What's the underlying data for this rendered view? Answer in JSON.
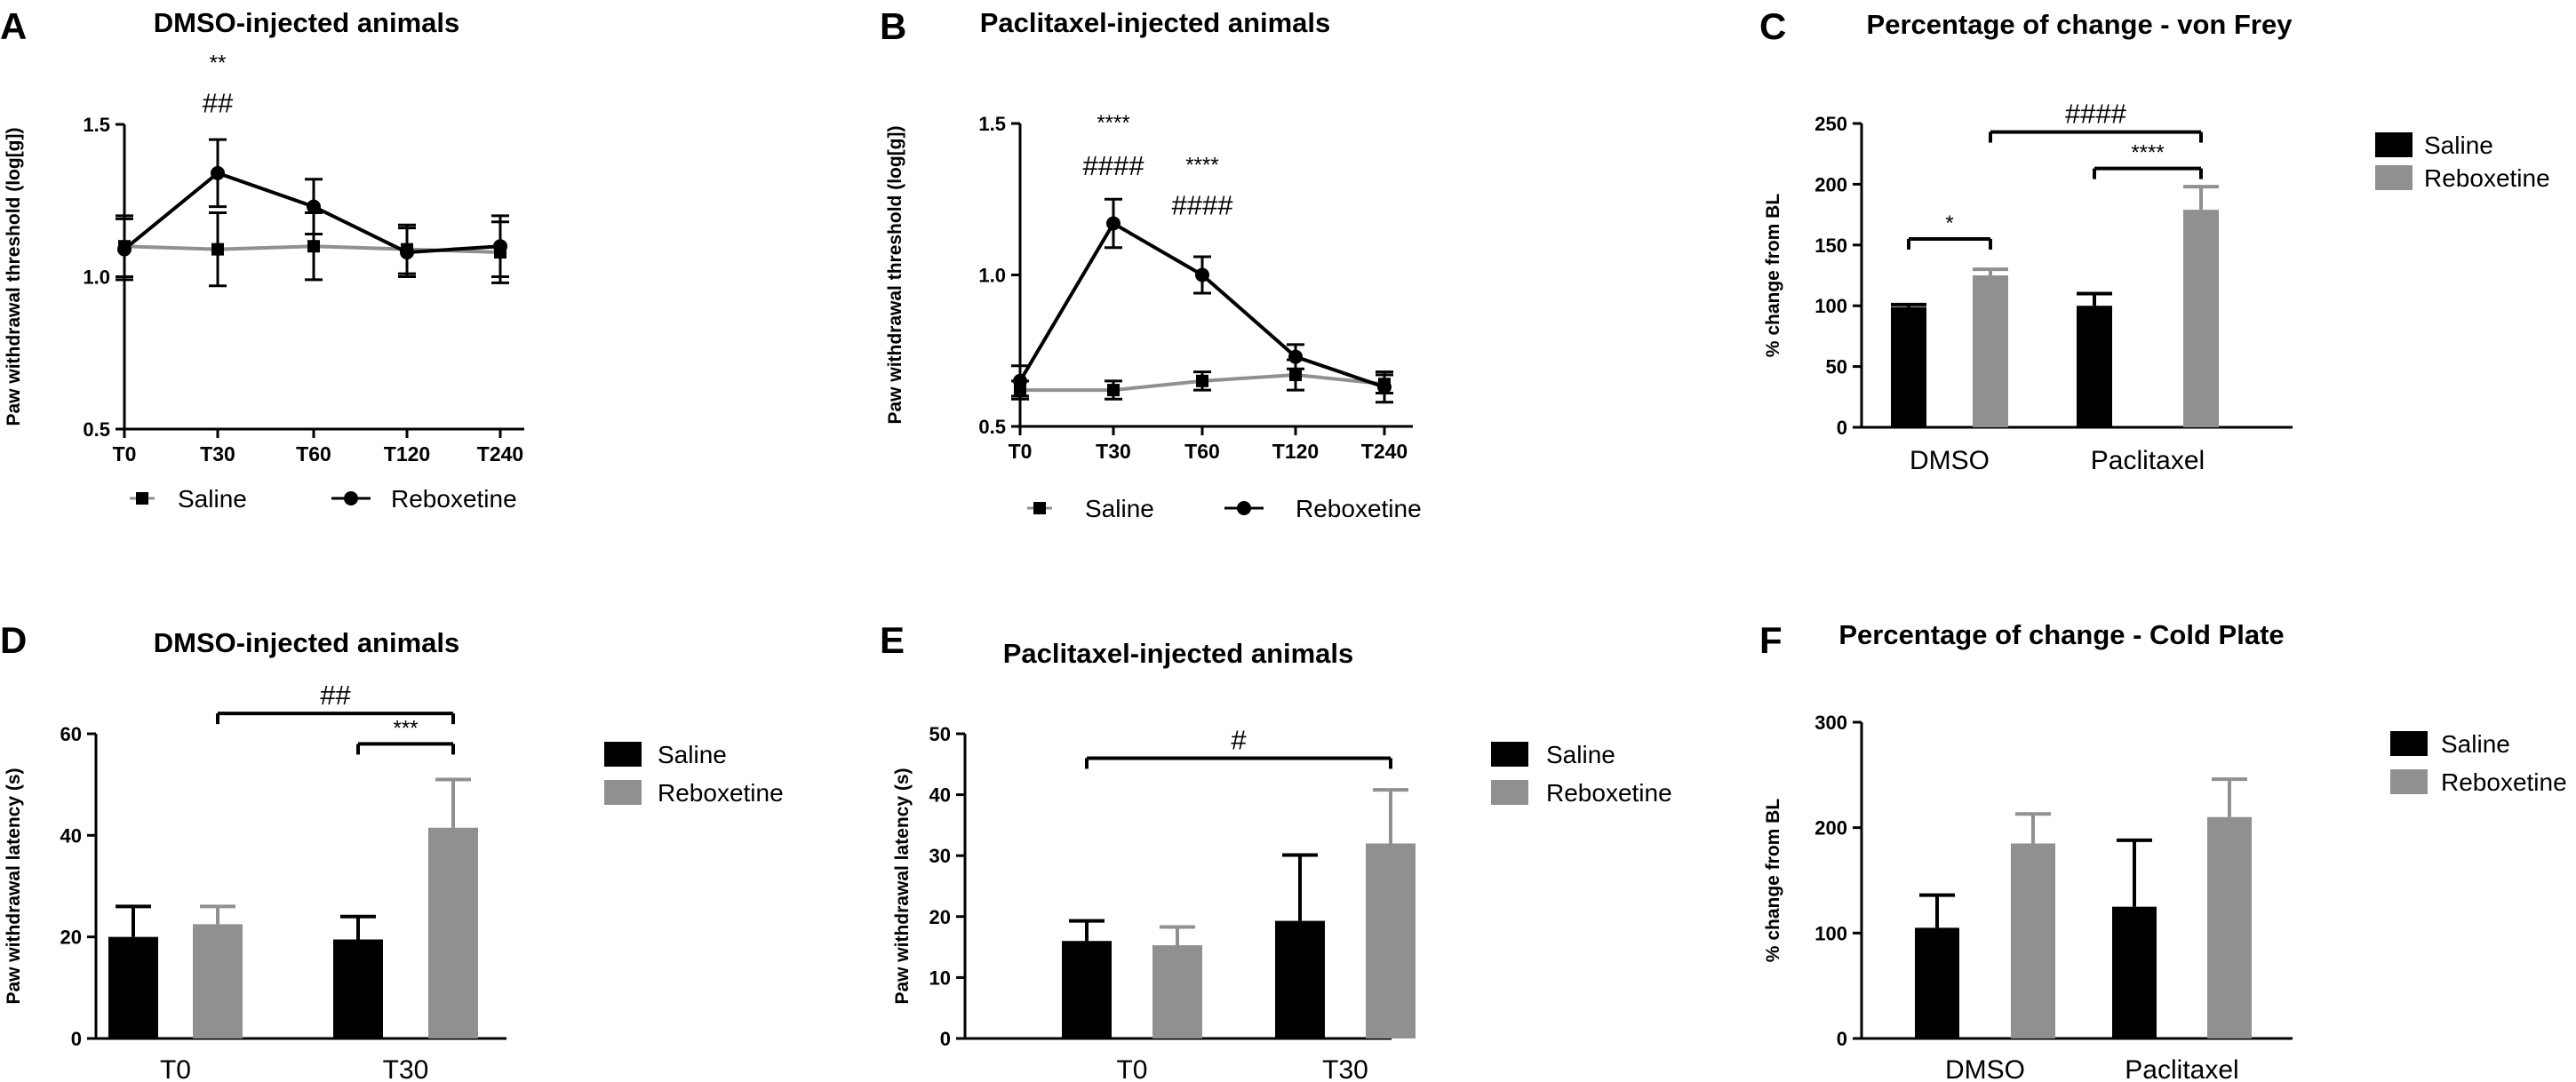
{
  "colors": {
    "saline": "#000000",
    "reboxetine": "#909090",
    "saline_line": "#909090",
    "reboxetine_line": "#000000"
  },
  "chart_data": [
    {
      "label": "A",
      "type": "line",
      "title": "DMSO-injected animals",
      "ylabel": "Paw withdrawal threshold (log[g])",
      "categories": [
        "T0",
        "T30",
        "T60",
        "T120",
        "T240"
      ],
      "ylim": [
        0.5,
        1.5
      ],
      "yticks": [
        "0.5",
        "1.0",
        "1.5"
      ],
      "series": [
        {
          "name": "Saline",
          "marker": "square",
          "values": [
            1.1,
            1.09,
            1.1,
            1.09,
            1.08
          ],
          "errors": [
            0.1,
            0.12,
            0.11,
            0.08,
            0.1
          ]
        },
        {
          "name": "Reboxetine",
          "marker": "circle",
          "values": [
            1.09,
            1.34,
            1.23,
            1.08,
            1.1
          ],
          "errors": [
            0.1,
            0.11,
            0.09,
            0.08,
            0.1
          ]
        }
      ],
      "legend": [
        "Saline",
        "Reboxetine"
      ],
      "annotations": [
        {
          "category": "T30",
          "y": 1.68,
          "text": "**"
        },
        {
          "category": "T30",
          "y": 1.54,
          "text": "##"
        }
      ]
    },
    {
      "label": "B",
      "type": "line",
      "title": "Paclitaxel-injected animals",
      "ylabel": "Paw withdrawal threshold (log[g])",
      "categories": [
        "T0",
        "T30",
        "T60",
        "T120",
        "T240"
      ],
      "ylim": [
        0.5,
        1.5
      ],
      "yticks": [
        "0.5",
        "1.0",
        "1.5"
      ],
      "series": [
        {
          "name": "Saline",
          "marker": "square",
          "values": [
            0.62,
            0.62,
            0.65,
            0.67,
            0.64
          ],
          "errors": [
            0.03,
            0.03,
            0.03,
            0.05,
            0.03
          ]
        },
        {
          "name": "Reboxetine",
          "marker": "circle",
          "values": [
            0.65,
            1.17,
            1.0,
            0.73,
            0.63
          ],
          "errors": [
            0.05,
            0.08,
            0.06,
            0.04,
            0.05
          ]
        }
      ],
      "legend": [
        "Saline",
        "Reboxetine"
      ],
      "annotations": [
        {
          "category": "T30",
          "y": 1.48,
          "text": "****"
        },
        {
          "category": "T30",
          "y": 1.33,
          "text": "####"
        },
        {
          "category": "T60",
          "y": 1.34,
          "text": "****"
        },
        {
          "category": "T60",
          "y": 1.2,
          "text": "####"
        }
      ]
    },
    {
      "label": "C",
      "type": "bar",
      "title": "Percentage of change - von Frey",
      "ylabel": "% change from BL",
      "categories": [
        "DMSO",
        "Paclitaxel"
      ],
      "ylim": [
        0,
        250
      ],
      "yticks": [
        "0",
        "50",
        "100",
        "150",
        "200",
        "250"
      ],
      "series": [
        {
          "name": "Saline",
          "values": [
            99,
            100
          ],
          "errors": [
            2,
            10
          ]
        },
        {
          "name": "Reboxetine",
          "values": [
            125,
            179
          ],
          "errors": [
            5,
            19
          ]
        }
      ],
      "legend": [
        "Saline",
        "Reboxetine"
      ],
      "annotations": [
        {
          "from": [
            0,
            0
          ],
          "to": [
            0,
            1
          ],
          "y": 155,
          "text": "*"
        },
        {
          "from": [
            1,
            0
          ],
          "to": [
            1,
            1
          ],
          "y": 213,
          "text": "****"
        },
        {
          "from": [
            0,
            1
          ],
          "to": [
            1,
            1
          ],
          "y": 243,
          "text": "####"
        }
      ]
    },
    {
      "label": "D",
      "type": "bar",
      "title": "DMSO-injected animals",
      "ylabel": "Paw withdrawal latency (s)",
      "categories": [
        "T0",
        "T30"
      ],
      "ylim": [
        0,
        60
      ],
      "yticks": [
        "0",
        "20",
        "40",
        "60"
      ],
      "series": [
        {
          "name": "Saline",
          "values": [
            20,
            19.5
          ],
          "errors": [
            6,
            4.5
          ]
        },
        {
          "name": "Reboxetine",
          "values": [
            22.5,
            41.5
          ],
          "errors": [
            3.5,
            9.5
          ]
        }
      ],
      "legend": [
        "Saline",
        "Reboxetine"
      ],
      "annotations": [
        {
          "from": [
            1,
            0
          ],
          "to": [
            1,
            1
          ],
          "y": 58,
          "text": "***"
        },
        {
          "from": [
            0,
            1
          ],
          "to": [
            1,
            1
          ],
          "y": 64,
          "text": "##"
        }
      ]
    },
    {
      "label": "E",
      "type": "bar",
      "title": "Paclitaxel-injected animals",
      "ylabel": "Paw withdrawal latency (s)",
      "categories": [
        "T0",
        "T30"
      ],
      "ylim": [
        0,
        50
      ],
      "yticks": [
        "0",
        "10",
        "20",
        "30",
        "40",
        "50"
      ],
      "series": [
        {
          "name": "Saline",
          "values": [
            16,
            19.3
          ],
          "errors": [
            3.3,
            10.8
          ]
        },
        {
          "name": "Reboxetine",
          "values": [
            15.3,
            32
          ],
          "errors": [
            3,
            8.8
          ]
        }
      ],
      "legend": [
        "Saline",
        "Reboxetine"
      ],
      "annotations": [
        {
          "from": [
            0,
            0
          ],
          "to": [
            1,
            1
          ],
          "y": 46,
          "text": "#"
        }
      ]
    },
    {
      "label": "F",
      "type": "bar",
      "title": "Percentage of change - Cold Plate",
      "ylabel": "% change from BL",
      "categories": [
        "DMSO",
        "Paclitaxel"
      ],
      "ylim": [
        0,
        300
      ],
      "yticks": [
        "0",
        "100",
        "200",
        "300"
      ],
      "series": [
        {
          "name": "Saline",
          "values": [
            105,
            125
          ],
          "errors": [
            31,
            63
          ]
        },
        {
          "name": "Reboxetine",
          "values": [
            185,
            210
          ],
          "errors": [
            28,
            36
          ]
        }
      ],
      "legend": [
        "Saline",
        "Reboxetine"
      ],
      "annotations": []
    }
  ]
}
